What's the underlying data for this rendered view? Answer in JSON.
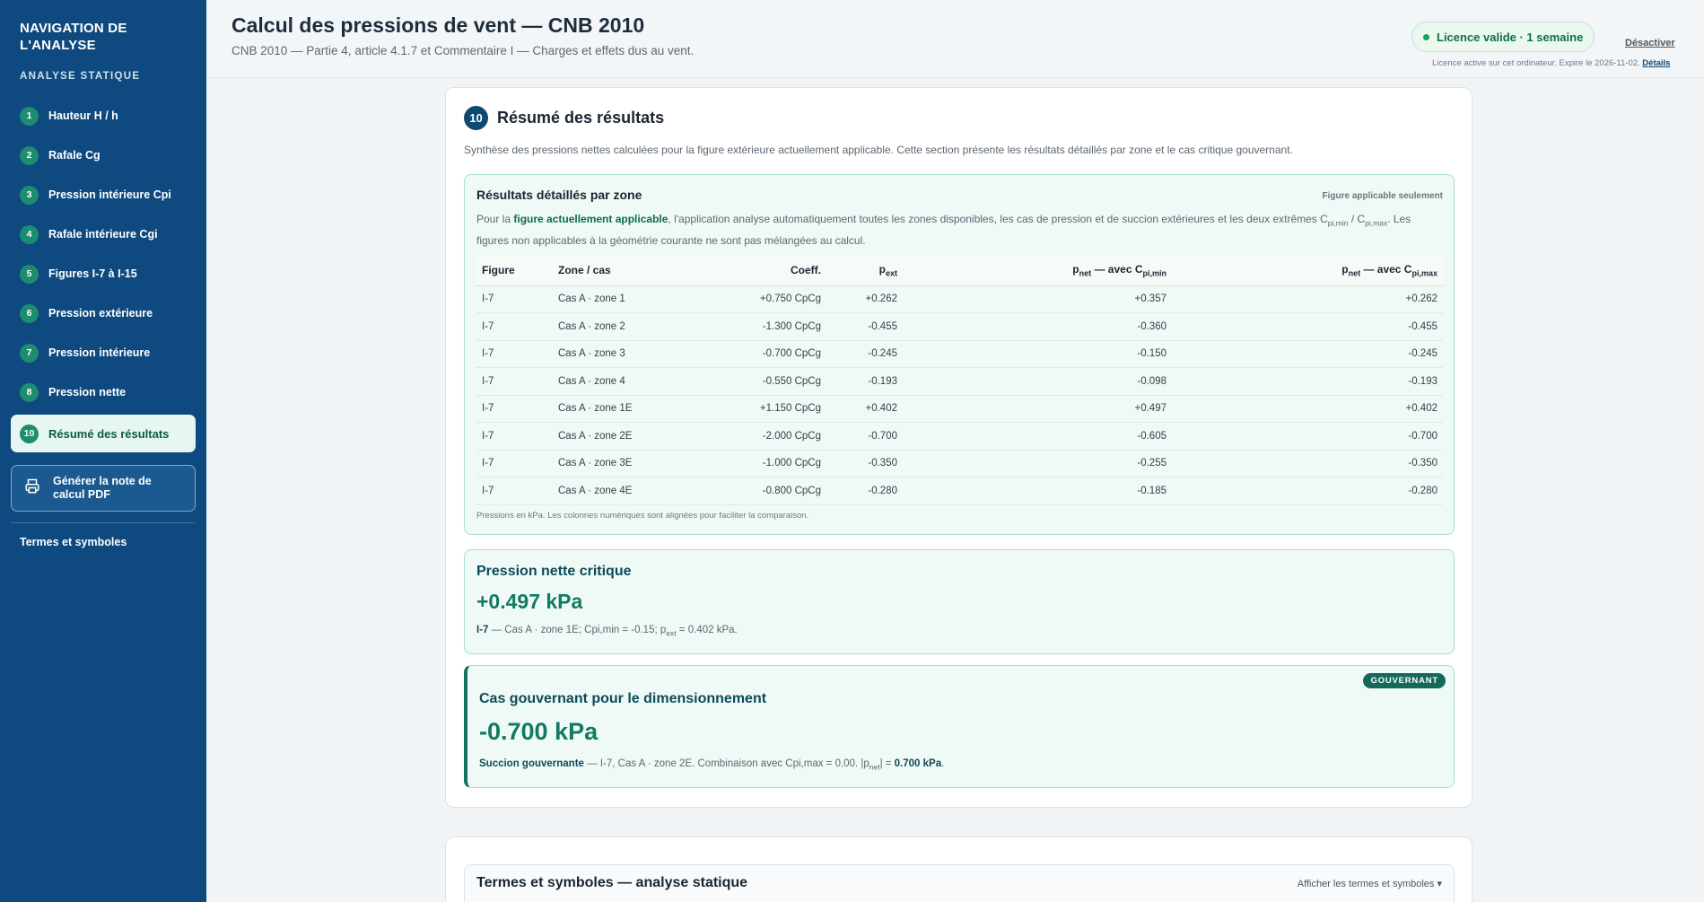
{
  "sidebar": {
    "title": "NAVIGATION DE L'ANALYSE",
    "subtitle": "ANALYSE STATIQUE",
    "items": [
      {
        "num": "1",
        "label": "Hauteur H / h"
      },
      {
        "num": "2",
        "label": "Rafale Cg"
      },
      {
        "num": "3",
        "label": "Pression intérieure Cpi"
      },
      {
        "num": "4",
        "label": "Rafale intérieure Cgi"
      },
      {
        "num": "5",
        "label": "Figures I-7 à I-15"
      },
      {
        "num": "6",
        "label": "Pression extérieure"
      },
      {
        "num": "7",
        "label": "Pression intérieure"
      },
      {
        "num": "8",
        "label": "Pression nette"
      }
    ],
    "active": {
      "num": "10",
      "label": "Résumé des résultats"
    },
    "pdf_label": "Générer la note de calcul PDF",
    "terms_link": "Termes et symboles"
  },
  "header": {
    "title": "Calcul des pressions de vent — CNB 2010",
    "subtitle": "CNB 2010 — Partie 4, article 4.1.7 et Commentaire I — Charges et effets dus au vent.",
    "license_badge": "Licence valide · 1 semaine",
    "deactivate": "Désactiver",
    "license_note": "Licence active sur cet ordinateur. Expire le 2026-11-02.",
    "details_link": "Détails"
  },
  "section": {
    "num": "10",
    "title": "Résumé des résultats",
    "description": "Synthèse des pressions nettes calculées pour la figure extérieure actuellement applicable. Cette section présente les résultats détaillés par zone et le cas critique gouvernant."
  },
  "zones": {
    "title": "Résultats détaillés par zone",
    "flag": "Figure applicable seulement",
    "desc_pre": "Pour la ",
    "desc_bold": "figure actuellement applicable",
    "desc_mid": ", l'application analyse automatiquement toutes les zones disponibles, les cas de pression et de succion extérieures et les deux extrêmes C",
    "desc_sub1": "pi,min",
    "desc_sep": " / C",
    "desc_sub2": "pi,max",
    "desc_post": ". Les figures non applicables à la géométrie courante ne sont pas mélangées au calcul.",
    "headers": {
      "figure": "Figure",
      "zone": "Zone / cas",
      "coeff": "Coeff.",
      "pext_p": "p",
      "pext_sub": "ext",
      "pmin_p": "p",
      "pmin_sub": "net",
      "pmin_mid": " — avec C",
      "pmin_sub2": "pi,min",
      "pmax_p": "p",
      "pmax_sub": "net",
      "pmax_mid": " — avec C",
      "pmax_sub2": "pi,max"
    },
    "rows": [
      {
        "figure": "I-7",
        "zone": "Cas A · zone 1",
        "coeff": "+0.750 CpCg",
        "pext": "+0.262",
        "pmin": "+0.357",
        "pmax": "+0.262"
      },
      {
        "figure": "I-7",
        "zone": "Cas A · zone 2",
        "coeff": "-1.300 CpCg",
        "pext": "-0.455",
        "pmin": "-0.360",
        "pmax": "-0.455"
      },
      {
        "figure": "I-7",
        "zone": "Cas A · zone 3",
        "coeff": "-0.700 CpCg",
        "pext": "-0.245",
        "pmin": "-0.150",
        "pmax": "-0.245"
      },
      {
        "figure": "I-7",
        "zone": "Cas A · zone 4",
        "coeff": "-0.550 CpCg",
        "pext": "-0.193",
        "pmin": "-0.098",
        "pmax": "-0.193"
      },
      {
        "figure": "I-7",
        "zone": "Cas A · zone 1E",
        "coeff": "+1.150 CpCg",
        "pext": "+0.402",
        "pmin": "+0.497",
        "pmax": "+0.402"
      },
      {
        "figure": "I-7",
        "zone": "Cas A · zone 2E",
        "coeff": "-2.000 CpCg",
        "pext": "-0.700",
        "pmin": "-0.605",
        "pmax": "-0.700"
      },
      {
        "figure": "I-7",
        "zone": "Cas A · zone 3E",
        "coeff": "-1.000 CpCg",
        "pext": "-0.350",
        "pmin": "-0.255",
        "pmax": "-0.350"
      },
      {
        "figure": "I-7",
        "zone": "Cas A · zone 4E",
        "coeff": "-0.800 CpCg",
        "pext": "-0.280",
        "pmin": "-0.185",
        "pmax": "-0.280"
      }
    ],
    "footnote": "Pressions en kPa. Les colonnes numériques sont alignées pour faciliter la comparaison."
  },
  "critical": {
    "title": "Pression nette critique",
    "value": "+0.497 kPa",
    "fig": "I-7",
    "detail_a": " — Cas A · zone 1E; Cpi,min = -0.15; p",
    "detail_sub": "ext",
    "detail_b": " = 0.402 kPa."
  },
  "governing": {
    "badge": "GOUVERNANT",
    "title": "Cas gouvernant pour le dimensionnement",
    "value": "-0.700 kPa",
    "bold1": "Succion gouvernante",
    "detail_a": " — I-7, Cas A · zone 2E. Combinaison avec Cpi,max = 0.00. |p",
    "detail_sub": "net",
    "detail_b": "| = ",
    "bold2": "0.700 kPa",
    "detail_end": "."
  },
  "terms": {
    "title": "Termes et symboles — analyse statique",
    "toggle": "Afficher les termes et symboles ▾"
  },
  "colors": {
    "sidebar_bg": "#0e4a7f",
    "accent": "#127a62",
    "box_bg": "#effaf6",
    "badge_bg": "#14695a"
  }
}
